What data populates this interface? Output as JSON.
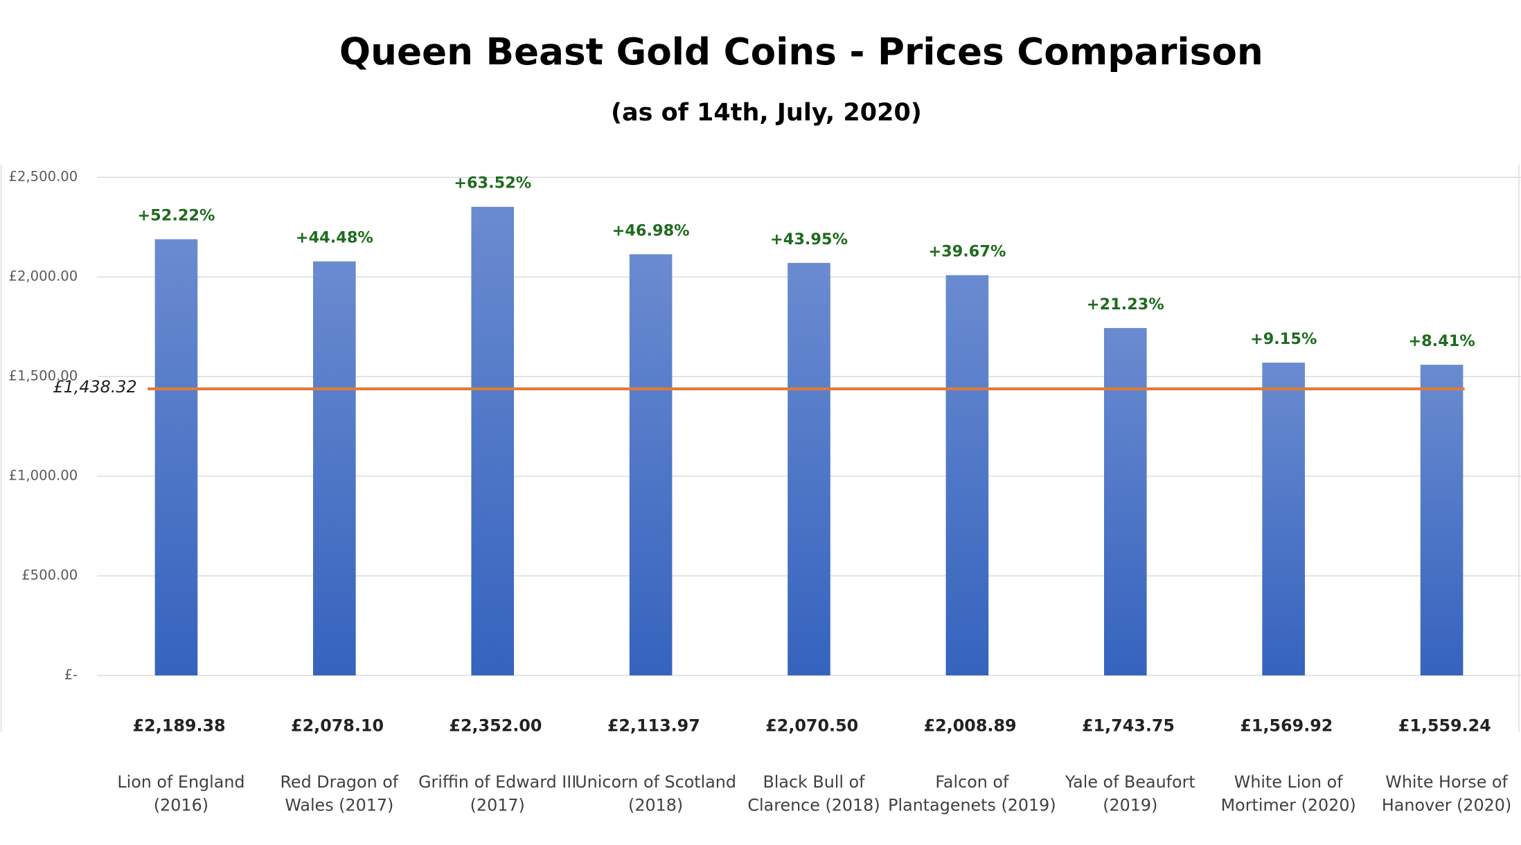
{
  "chart_data": {
    "type": "bar",
    "title": "Queen Beast Gold Coins - Prices Comparison",
    "subtitle": "(as of 14th, July, 2020)",
    "categories": [
      [
        "Lion of England",
        "(2016)"
      ],
      [
        "Red Dragon of",
        "Wales (2017)"
      ],
      [
        "Griffin of Edward III",
        "(2017)"
      ],
      [
        "Unicorn of Scotland",
        "(2018)"
      ],
      [
        "Black Bull of",
        "Clarence (2018)"
      ],
      [
        "Falcon of",
        "Plantagenets (2019)"
      ],
      [
        "Yale of Beaufort",
        "(2019)"
      ],
      [
        "White Lion of",
        "Mortimer (2020)"
      ],
      [
        "White Horse of",
        "Hanover (2020)"
      ]
    ],
    "values": [
      2189.38,
      2078.1,
      2352.0,
      2113.97,
      2070.5,
      2008.89,
      1743.75,
      1569.92,
      1559.24
    ],
    "value_labels": [
      "£2,189.38",
      "£2,078.10",
      "£2,352.00",
      "£2,113.97",
      "£2,070.50",
      "£2,008.89",
      "£1,743.75",
      "£1,569.92",
      "£1,559.24"
    ],
    "annotations": [
      "+52.22%",
      "+44.48%",
      "+63.52%",
      "+46.98%",
      "+43.95%",
      "+39.67%",
      "+21.23%",
      "+9.15%",
      "+8.41%"
    ],
    "color": "#4472c4",
    "annotation_color": "#1e6b1e",
    "reference_line": {
      "value": 1438.32,
      "label": "£1,438.32",
      "color": "#e07b39"
    },
    "ylim": [
      0,
      2500
    ],
    "yticks": [
      {
        "value": 0,
        "label": "£-"
      },
      {
        "value": 500,
        "label": "£500.00"
      },
      {
        "value": 1000,
        "label": "£1,000.00"
      },
      {
        "value": 1500,
        "label": "£1,500.00"
      },
      {
        "value": 2000,
        "label": "£2,000.00"
      },
      {
        "value": 2500,
        "label": "£2,500.00"
      }
    ],
    "grid": true
  }
}
